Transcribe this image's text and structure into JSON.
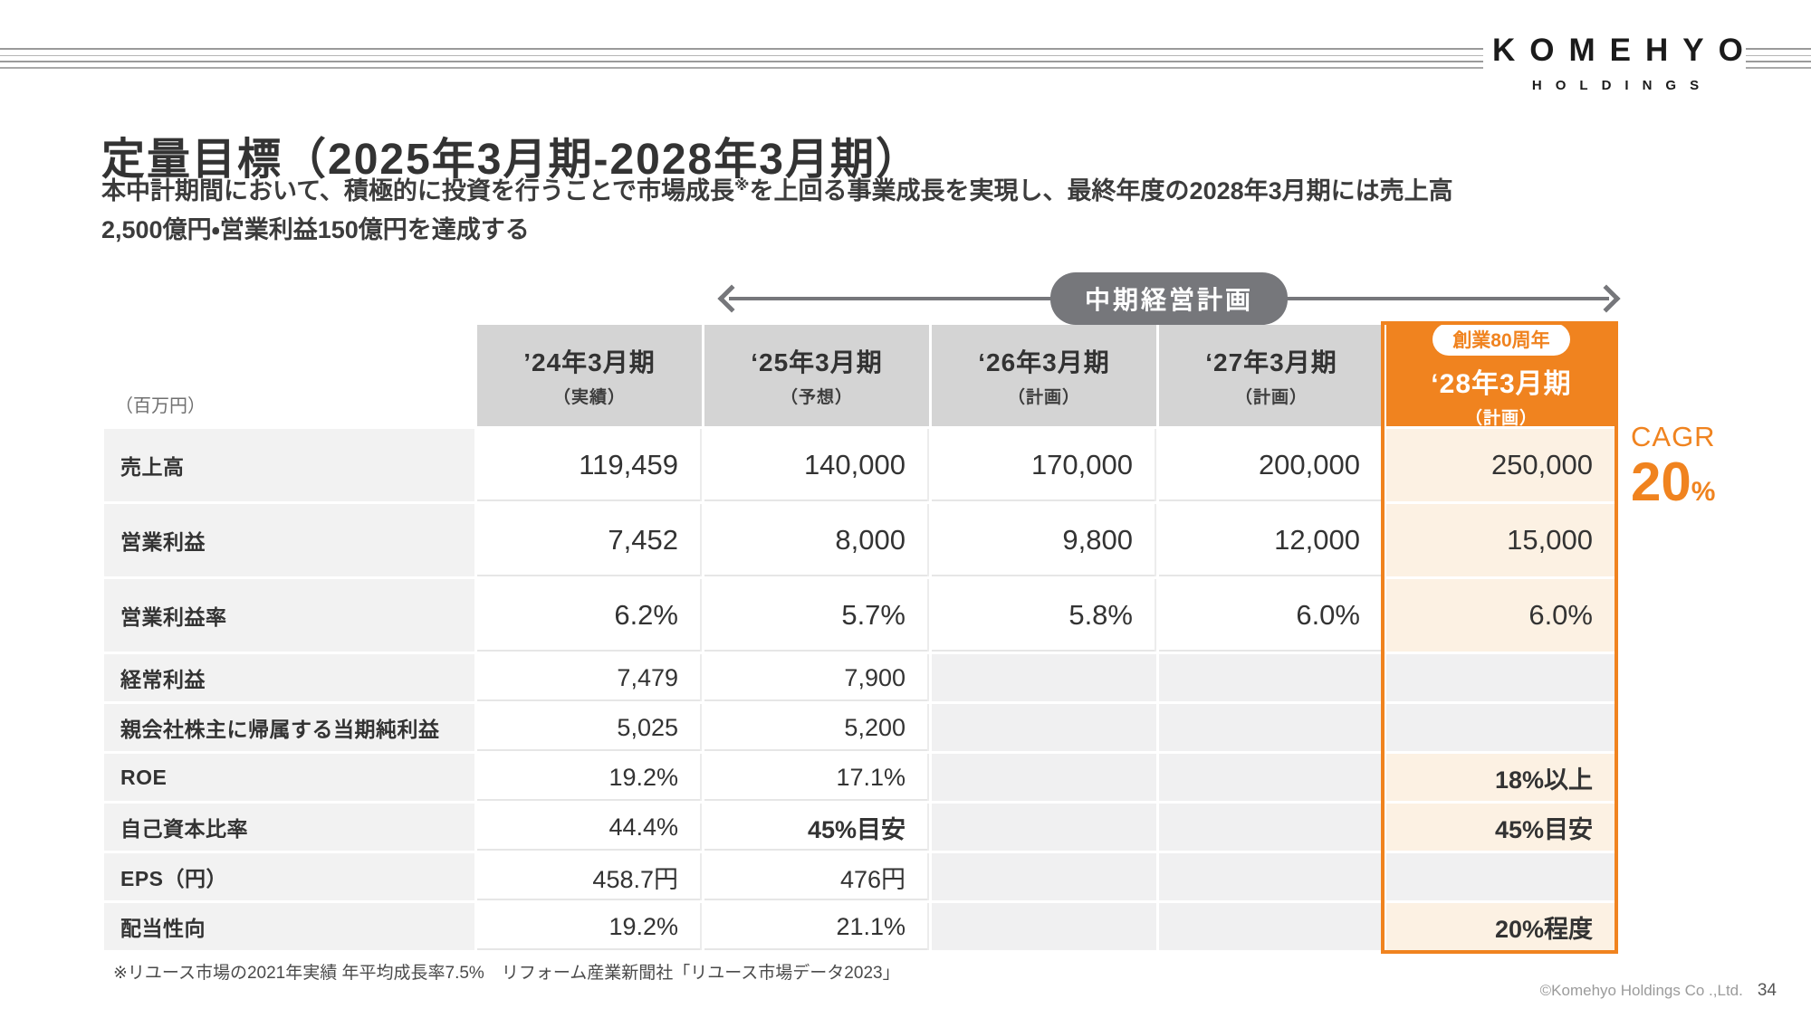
{
  "slide": {
    "logo": {
      "brand": "KOMEHYO",
      "sub": "HOLDINGS"
    },
    "title": "定量目標（2025年3月期-2028年3月期）",
    "subtitle": {
      "line1_pre": "本中計期間において、積極的に投資を行うことで市場成長",
      "line1_sup": "※",
      "line1_post": "を上回る事業成長を実現し、最終年度の2028年3月期には売上高",
      "line2": "2,500億円・営業利益150億円を達成する"
    },
    "plan_label": "中期経営計画",
    "unit_note": "（百万円）",
    "cagr": {
      "label": "CAGR",
      "value": "20",
      "unit": "%"
    },
    "footnote": "※リユース市場の2021年実績 年平均成長率7.5%　リフォーム産業新聞社「リユース市場データ2023」",
    "copyright": "©Komehyo Holdings Co .,Ltd.",
    "page_number": "34"
  },
  "colors": {
    "accent_orange": "#f0831f",
    "fy28_cell_cream": "#fcf1e3",
    "header_gray": "#d4d4d4",
    "label_gray": "#f2f2f2",
    "empty_gray": "#f0f0f1",
    "pill_gray": "#76777b"
  },
  "table": {
    "columns": [
      {
        "line1": "’24年3月期",
        "line2": "（実績）"
      },
      {
        "line1": "‘25年3月期",
        "line2": "（予想）"
      },
      {
        "line1": "‘26年3月期",
        "line2": "（計画）"
      },
      {
        "line1": "‘27年3月期",
        "line2": "（計画）"
      },
      {
        "badge": "創業80周年",
        "line1": "‘28年3月期",
        "line2": "（計画）"
      }
    ],
    "rows": [
      {
        "label": "売上高",
        "values": [
          "119,459",
          "140,000",
          "170,000",
          "200,000",
          "250,000"
        ]
      },
      {
        "label": "営業利益",
        "values": [
          "7,452",
          "8,000",
          "9,800",
          "12,000",
          "15,000"
        ]
      },
      {
        "label": "営業利益率",
        "values": [
          "6.2%",
          "5.7%",
          "5.8%",
          "6.0%",
          "6.0%"
        ]
      },
      {
        "label": "経常利益",
        "values": [
          "7,479",
          "7,900",
          "",
          "",
          ""
        ]
      },
      {
        "label": "親会社株主に帰属する当期純利益",
        "values": [
          "5,025",
          "5,200",
          "",
          "",
          ""
        ]
      },
      {
        "label": "ROE",
        "values": [
          "19.2%",
          "17.1%",
          "",
          "",
          "18%以上"
        ]
      },
      {
        "label": "自己資本比率",
        "values": [
          "44.4%",
          "45%目安",
          "",
          "",
          "45%目安"
        ]
      },
      {
        "label": "EPS（円）",
        "values": [
          "458.7円",
          "476円",
          "",
          "",
          ""
        ]
      },
      {
        "label": "配当性向",
        "values": [
          "19.2%",
          "21.1%",
          "",
          "",
          "20%程度"
        ]
      }
    ]
  }
}
